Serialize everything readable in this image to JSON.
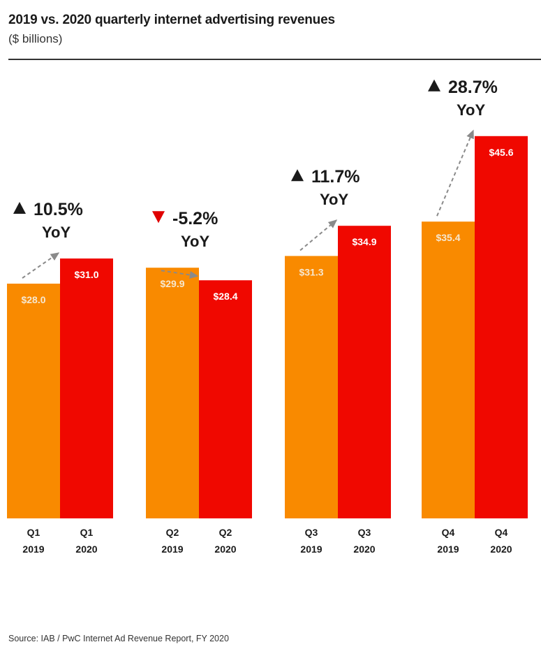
{
  "header": {
    "title": "2019 vs. 2020 quarterly internet advertising revenues",
    "subtitle": "($ billions)"
  },
  "footer": {
    "source": "Source: IAB / PwC Internet Ad Revenue Report, FY 2020"
  },
  "colors": {
    "series_2019": "#F98A00",
    "series_2020": "#F00800",
    "up_arrow": "#1a1a1a",
    "down_arrow": "#E00000",
    "trend_arrow": "#8a8a8a"
  },
  "chart_data": {
    "type": "bar",
    "title": "2019 vs. 2020 quarterly internet advertising revenues",
    "subtitle": "($ billions)",
    "categories": [
      "Q1",
      "Q2",
      "Q3",
      "Q4"
    ],
    "series": [
      {
        "name": "2019",
        "values": [
          28.0,
          29.9,
          31.3,
          35.4
        ],
        "value_labels": [
          "$28.0",
          "$29.9",
          "$31.3",
          "$35.4"
        ],
        "tick_labels": [
          [
            "Q1",
            "2019"
          ],
          [
            "Q2",
            "2019"
          ],
          [
            "Q3",
            "2019"
          ],
          [
            "Q4",
            "2019"
          ]
        ]
      },
      {
        "name": "2020",
        "values": [
          31.0,
          28.4,
          34.9,
          45.6
        ],
        "value_labels": [
          "$31.0",
          "$28.4",
          "$34.9",
          "$45.6"
        ],
        "tick_labels": [
          [
            "Q1",
            "2020"
          ],
          [
            "Q2",
            "2020"
          ],
          [
            "Q3",
            "2020"
          ],
          [
            "Q4",
            "2020"
          ]
        ]
      }
    ],
    "annotations": [
      {
        "category": "Q1",
        "direction": "up",
        "pct": "10.5%",
        "word": "YoY"
      },
      {
        "category": "Q2",
        "direction": "down",
        "pct": "-5.2%",
        "word": "YoY"
      },
      {
        "category": "Q3",
        "direction": "up",
        "pct": "11.7%",
        "word": "YoY"
      },
      {
        "category": "Q4",
        "direction": "up",
        "pct": "28.7%",
        "word": "YoY"
      }
    ],
    "grid": false,
    "legend": "none",
    "ylim": [
      0,
      50
    ]
  }
}
